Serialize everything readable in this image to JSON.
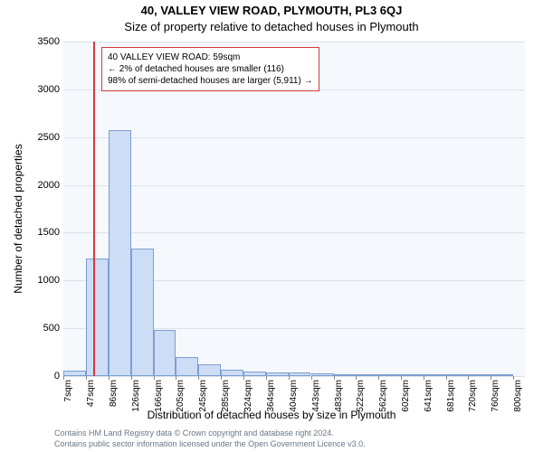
{
  "title": "40, VALLEY VIEW ROAD, PLYMOUTH, PL3 6QJ",
  "subtitle": "Size of property relative to detached houses in Plymouth",
  "y_axis_label": "Number of detached properties",
  "x_axis_label": "Distribution of detached houses by size in Plymouth",
  "footer_line1": "Contains HM Land Registry data © Crown copyright and database right 2024.",
  "footer_line2": "Contains public sector information licensed under the Open Government Licence v3.0.",
  "chart": {
    "type": "histogram",
    "background_color": "#f5f8fc",
    "grid_color": "#d9e3ee",
    "bar_fill": "#cdddf6",
    "bar_border": "#7d9ed3",
    "marker_color": "#d43a3a",
    "ylim": [
      0,
      3500
    ],
    "ytick_step": 500,
    "yticks": [
      0,
      500,
      1000,
      1500,
      2000,
      2500,
      3000,
      3500
    ],
    "x_data_min": 7,
    "x_data_max": 820,
    "x_ticks": [
      7,
      47,
      86,
      126,
      166,
      205,
      245,
      285,
      324,
      364,
      404,
      443,
      483,
      522,
      562,
      602,
      641,
      681,
      720,
      760,
      800
    ],
    "x_tick_suffix": "sqm",
    "bars": [
      {
        "x0": 7,
        "x1": 47,
        "count": 60
      },
      {
        "x0": 47,
        "x1": 86,
        "count": 1230
      },
      {
        "x0": 86,
        "x1": 126,
        "count": 2570
      },
      {
        "x0": 126,
        "x1": 166,
        "count": 1330
      },
      {
        "x0": 166,
        "x1": 205,
        "count": 480
      },
      {
        "x0": 205,
        "x1": 245,
        "count": 200
      },
      {
        "x0": 245,
        "x1": 285,
        "count": 120
      },
      {
        "x0": 285,
        "x1": 324,
        "count": 70
      },
      {
        "x0": 324,
        "x1": 364,
        "count": 50
      },
      {
        "x0": 364,
        "x1": 404,
        "count": 40
      },
      {
        "x0": 404,
        "x1": 443,
        "count": 40
      },
      {
        "x0": 443,
        "x1": 483,
        "count": 30
      },
      {
        "x0": 483,
        "x1": 522,
        "count": 10
      },
      {
        "x0": 522,
        "x1": 562,
        "count": 5
      },
      {
        "x0": 562,
        "x1": 602,
        "count": 5
      },
      {
        "x0": 602,
        "x1": 641,
        "count": 5
      },
      {
        "x0": 641,
        "x1": 681,
        "count": 5
      },
      {
        "x0": 681,
        "x1": 720,
        "count": 3
      },
      {
        "x0": 720,
        "x1": 760,
        "count": 3
      },
      {
        "x0": 760,
        "x1": 800,
        "count": 3
      }
    ],
    "marker_x": 59,
    "annotation": {
      "line1": "40 VALLEY VIEW ROAD: 59sqm",
      "line2": "← 2% of detached houses are smaller (116)",
      "line3": "98% of semi-detached houses are larger (5,911) →",
      "border_color": "#d43a3a",
      "font_size": 10
    }
  }
}
